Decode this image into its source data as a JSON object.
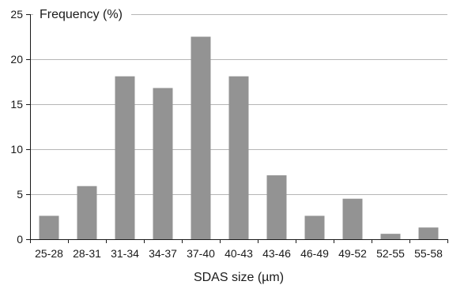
{
  "chart_data": {
    "type": "bar",
    "title": "",
    "ylabel": "Frequency (%)",
    "xlabel": "SDAS size (µm)",
    "categories": [
      "25-28",
      "28-31",
      "31-34",
      "34-37",
      "37-40",
      "40-43",
      "43-46",
      "46-49",
      "49-52",
      "52-55",
      "55-58"
    ],
    "values": [
      2.6,
      5.9,
      18.1,
      16.8,
      22.5,
      18.1,
      7.1,
      2.6,
      4.5,
      0.6,
      1.3
    ],
    "ylim": [
      0,
      25
    ],
    "yticks": [
      0,
      5,
      10,
      15,
      20,
      25
    ],
    "grid": "horizontal",
    "legend": "none",
    "colors": {
      "bar": "#939393",
      "grid": "#b5b5b5",
      "axis": "#1a1a1a"
    }
  }
}
